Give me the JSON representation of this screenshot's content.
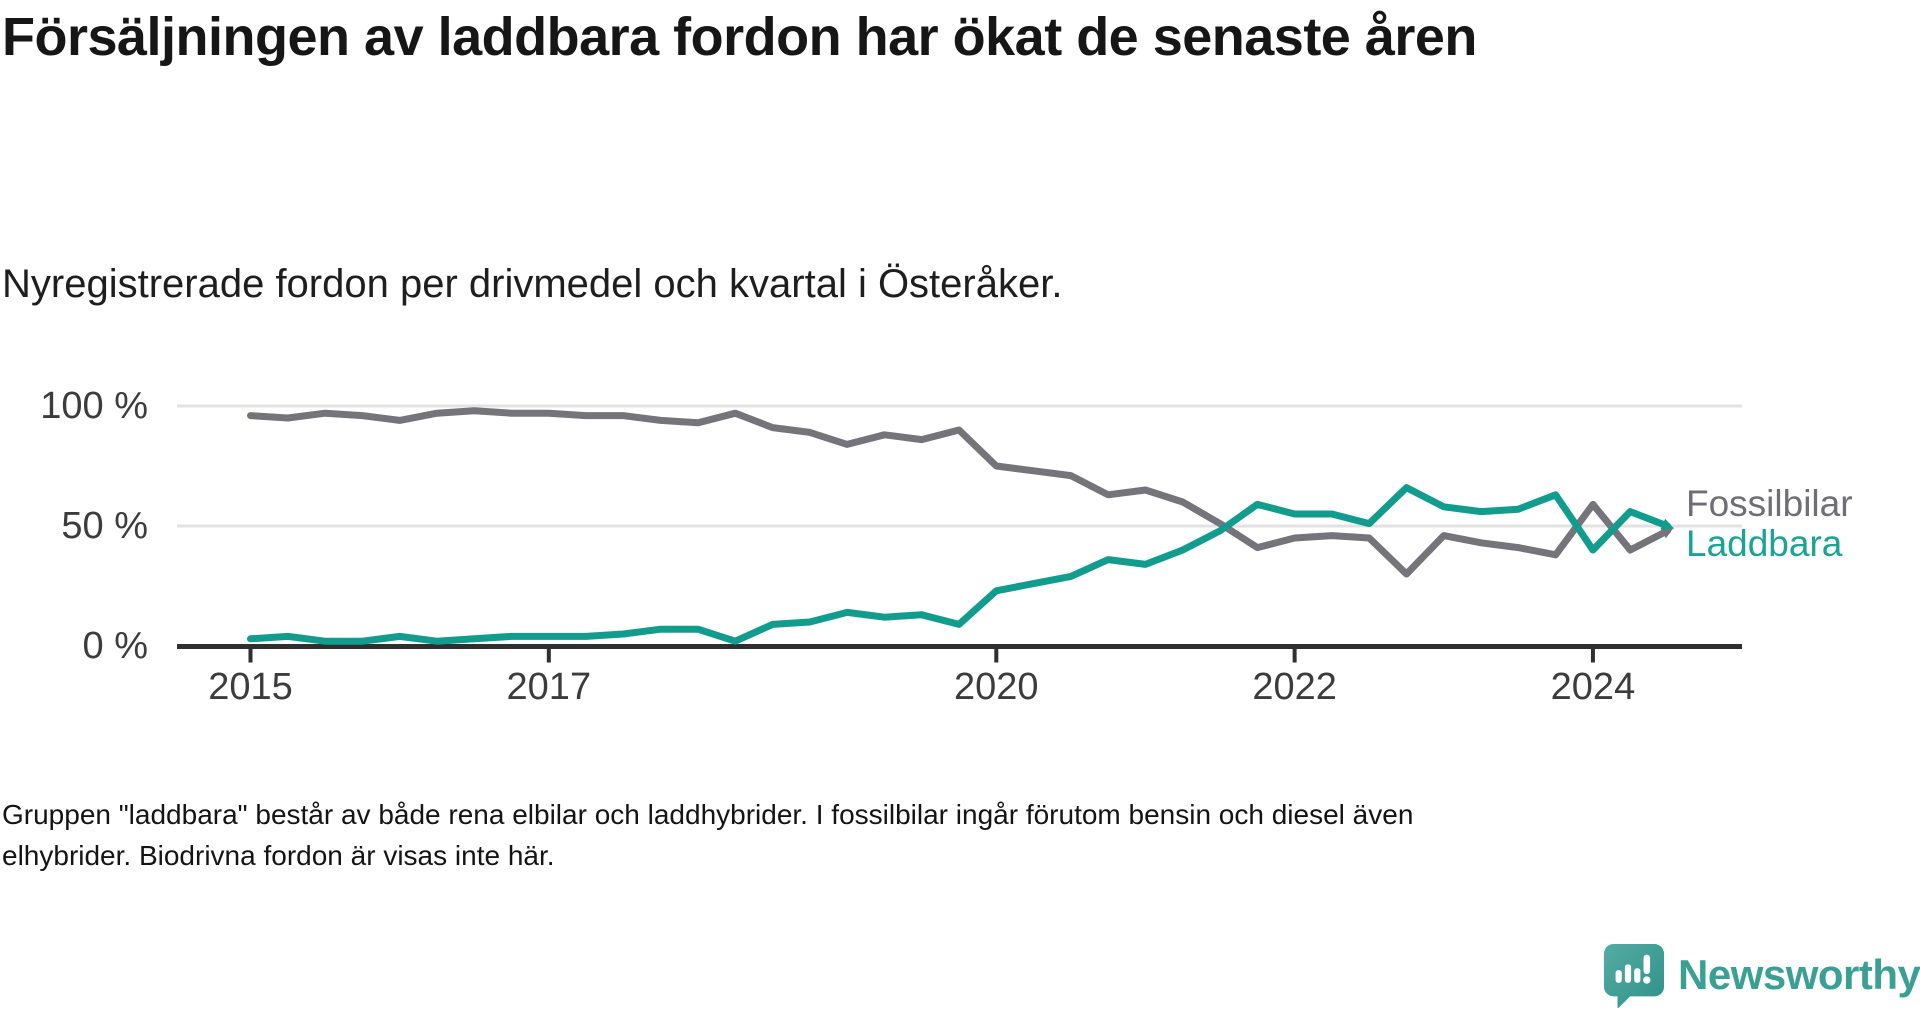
{
  "header": {
    "title": "Försäljningen av laddbara fordon har ökat de senaste åren",
    "subtitle": "Nyregistrerade fordon per drivmedel och kvartal i Österåker."
  },
  "chart_data": {
    "type": "line",
    "title": "Nyregistrerade fordon per drivmedel och kvartal i Österåker",
    "x_unit": "quarter",
    "x_start": "2015 Q1",
    "x_end": "2024 Q3",
    "n_points": 39,
    "ylim": [
      0,
      100
    ],
    "grid": "horizontal",
    "legend_position": "right-of-line-end",
    "yticks": [
      {
        "label": "0 %",
        "value": 0
      },
      {
        "label": "50 %",
        "value": 50
      },
      {
        "label": "100 %",
        "value": 100
      }
    ],
    "xticks": [
      {
        "label": "2015",
        "q": 0
      },
      {
        "label": "2017",
        "q": 8
      },
      {
        "label": "2020",
        "q": 20
      },
      {
        "label": "2022",
        "q": 28
      },
      {
        "label": "2024",
        "q": 36
      }
    ],
    "series": [
      {
        "name": "Fossilbilar",
        "color": "#75747A",
        "label_color": "#6E6E74",
        "values": [
          96,
          95,
          97,
          96,
          94,
          97,
          98,
          97,
          97,
          96,
          96,
          94,
          93,
          97,
          91,
          89,
          84,
          88,
          86,
          90,
          75,
          73,
          71,
          63,
          65,
          60,
          51,
          41,
          45,
          46,
          45,
          30,
          46,
          43,
          41,
          38,
          59,
          40,
          48
        ]
      },
      {
        "name": "Laddbara",
        "color": "#129C8D",
        "label_color": "#1BA396",
        "values": [
          3,
          4,
          2,
          2,
          4,
          2,
          3,
          4,
          4,
          4,
          5,
          7,
          7,
          2,
          9,
          10,
          14,
          12,
          13,
          9,
          23,
          26,
          29,
          36,
          34,
          40,
          48,
          59,
          55,
          55,
          51,
          66,
          58,
          56,
          57,
          63,
          40,
          56,
          50
        ]
      }
    ]
  },
  "footnote": {
    "text": "Gruppen \"laddbara\" består av både rena elbilar och laddhybrider. I fossilbilar ingår förutom bensin och diesel även elhybrider. Biodrivna fordon är visas inte här."
  },
  "branding": {
    "name": "Newsworthy",
    "color": "#3BA094",
    "icon": "newsworthy-speech-bubble-chart-icon"
  }
}
